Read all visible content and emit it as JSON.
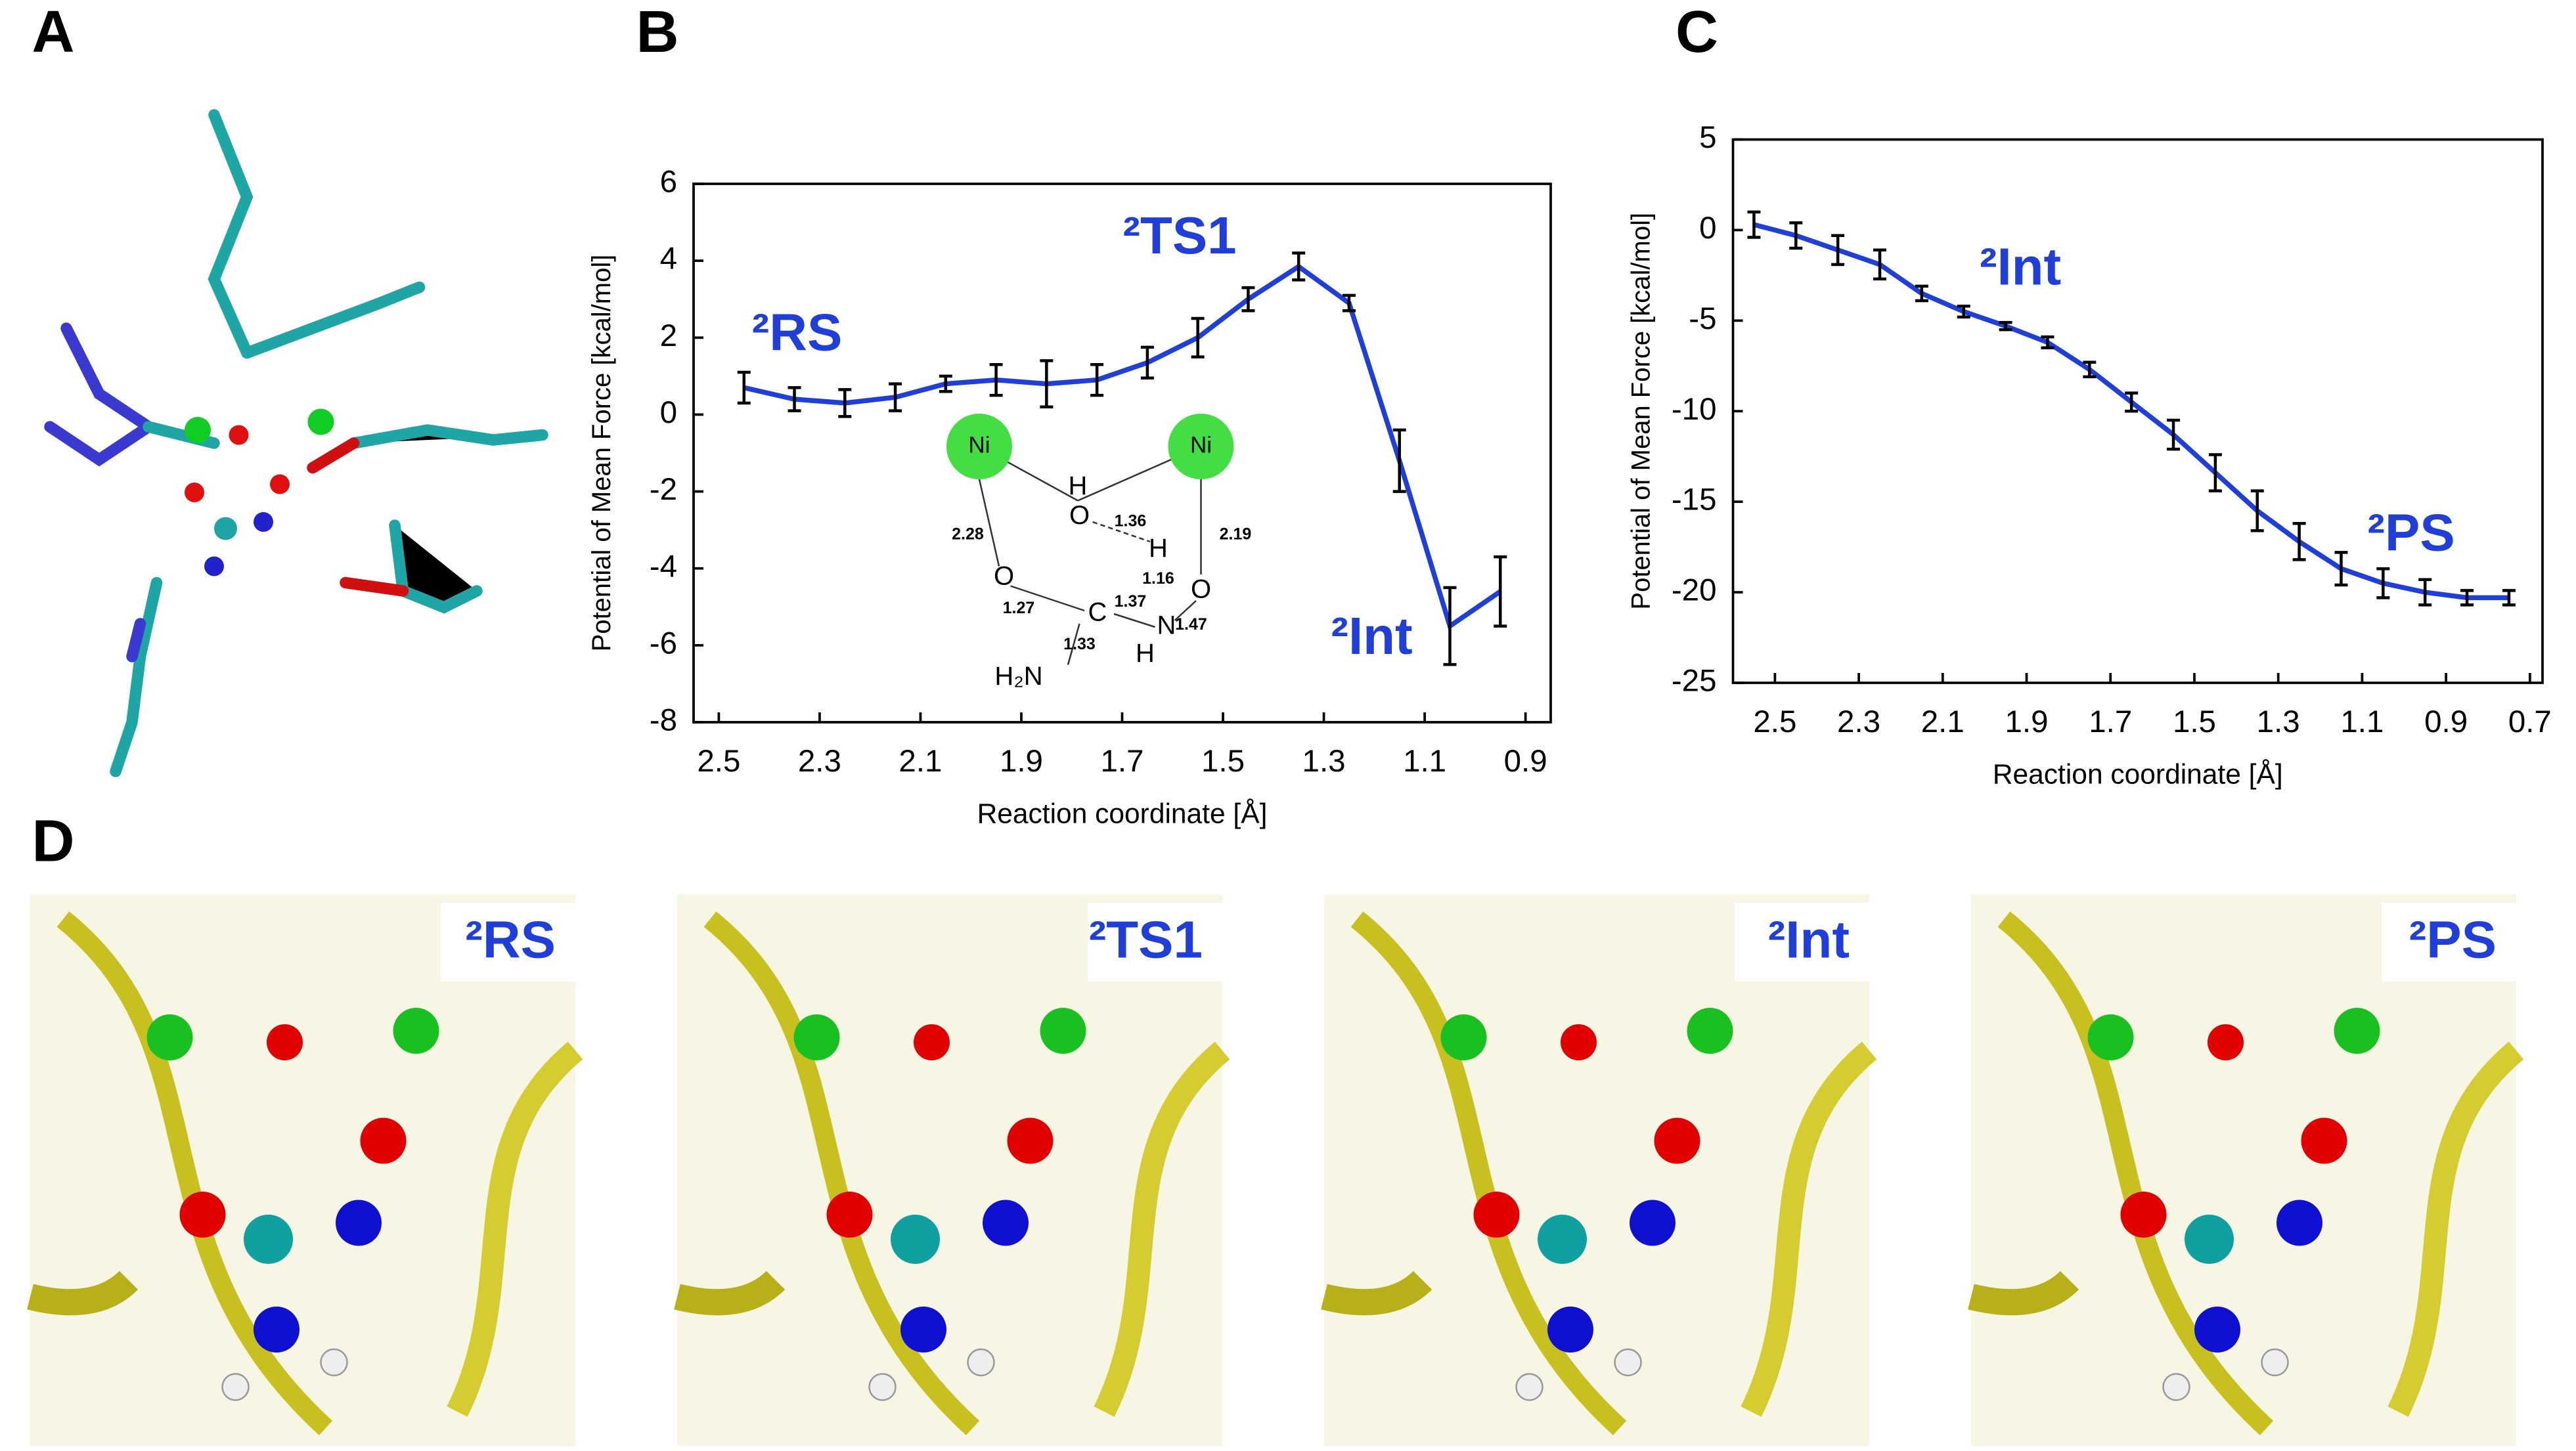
{
  "panels": [
    "A",
    "B",
    "C",
    "D"
  ],
  "chart_data": [
    {
      "type": "line",
      "xlabel": "Reaction coordinate [Å]",
      "ylabel": "Potential of Mean Force [kcal/mol]",
      "x": [
        2.45,
        2.35,
        2.25,
        2.15,
        2.05,
        1.95,
        1.85,
        1.75,
        1.65,
        1.55,
        1.45,
        1.35,
        1.25,
        1.15,
        1.05,
        0.95
      ],
      "series": [
        {
          "color": "#1f3fd8",
          "values": [
            0.7,
            0.4,
            0.3,
            0.45,
            0.8,
            0.9,
            0.8,
            0.9,
            1.35,
            2.0,
            3.0,
            3.85,
            2.9,
            -1.2,
            -5.5,
            -4.6
          ],
          "errors": [
            0.4,
            0.3,
            0.35,
            0.35,
            0.2,
            0.4,
            0.6,
            0.4,
            0.4,
            0.5,
            0.3,
            0.35,
            0.2,
            0.8,
            1.0,
            0.9
          ]
        }
      ],
      "xlim": [
        2.55,
        0.85
      ],
      "xticks": [
        2.5,
        2.3,
        2.1,
        1.9,
        1.7,
        1.5,
        1.3,
        1.1,
        0.9
      ],
      "ylim": [
        -8,
        6
      ],
      "yticks": [
        6,
        4,
        2,
        0,
        -2,
        -4,
        -6,
        -8
      ],
      "annotations": [
        "²RS",
        "²TS1",
        "²Int"
      ],
      "inset": [
        "Ni",
        "Ni",
        "H",
        "O",
        "1.36",
        "H",
        "1.16",
        "O",
        "2.28",
        "2.19",
        "O",
        "C",
        "1.27",
        "1.37",
        "1.33",
        "N",
        "H",
        "1.47",
        "H₂N"
      ]
    },
    {
      "type": "line",
      "xlabel": "Reaction coordinate [Å]",
      "ylabel": "Potential of Mean Force [kcal/mol]",
      "x": [
        2.55,
        2.45,
        2.35,
        2.25,
        2.15,
        2.05,
        1.95,
        1.85,
        1.75,
        1.65,
        1.55,
        1.45,
        1.35,
        1.25,
        1.15,
        1.05,
        0.95,
        0.85,
        0.75
      ],
      "series": [
        {
          "color": "#1f3fd8",
          "values": [
            0.3,
            -0.3,
            -1.1,
            -1.9,
            -3.5,
            -4.5,
            -5.3,
            -6.2,
            -7.7,
            -9.5,
            -11.3,
            -13.4,
            -15.5,
            -17.2,
            -18.7,
            -19.5,
            -20.0,
            -20.3,
            -20.3
          ],
          "errors": [
            0.7,
            0.7,
            0.8,
            0.8,
            0.4,
            0.3,
            0.2,
            0.3,
            0.4,
            0.5,
            0.8,
            1.0,
            1.1,
            1.0,
            0.9,
            0.8,
            0.7,
            0.4,
            0.4
          ]
        }
      ],
      "xlim": [
        2.6,
        0.67
      ],
      "xticks": [
        2.5,
        2.3,
        2.1,
        1.9,
        1.7,
        1.5,
        1.3,
        1.1,
        0.9,
        0.7
      ],
      "ylim": [
        -25,
        5
      ],
      "yticks": [
        5,
        0,
        -5,
        -10,
        -15,
        -20,
        -25
      ],
      "annotations": [
        "²Int",
        "²PS"
      ]
    }
  ],
  "d_labels": [
    "²RS",
    "²TS1",
    "²Int",
    "²PS"
  ]
}
